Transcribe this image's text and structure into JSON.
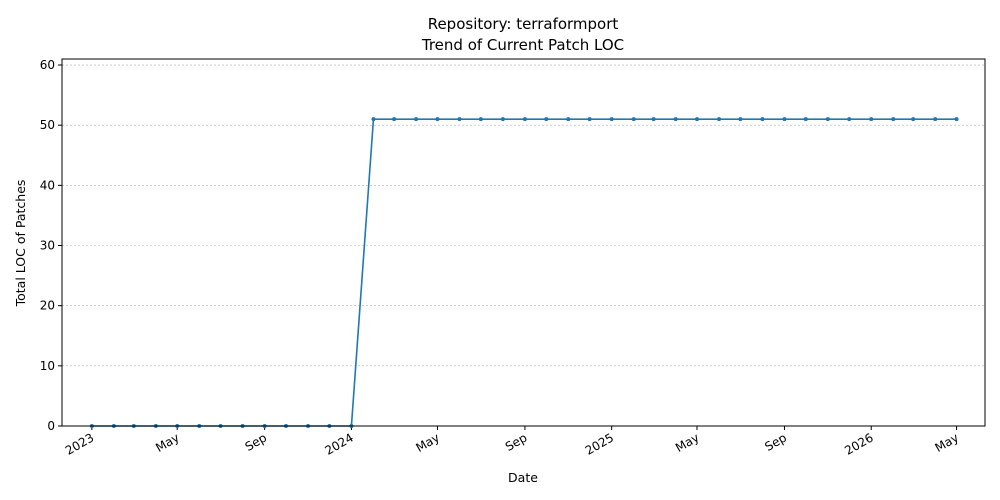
{
  "chart_data": {
    "type": "line",
    "title": "Repository: terraformport",
    "subtitle": "Trend of Current Patch LOC",
    "xlabel": "Date",
    "ylabel": "Total LOC of Patches",
    "ylim": [
      0,
      61
    ],
    "yticks": [
      0,
      10,
      20,
      30,
      40,
      50,
      60
    ],
    "xlim": [
      "2022-11-20",
      "2026-06-10"
    ],
    "xticks": [
      {
        "date": "2023-01-01",
        "label": "2023"
      },
      {
        "date": "2023-05-01",
        "label": "May"
      },
      {
        "date": "2023-09-01",
        "label": "Sep"
      },
      {
        "date": "2024-01-01",
        "label": "2024"
      },
      {
        "date": "2024-05-01",
        "label": "May"
      },
      {
        "date": "2024-09-01",
        "label": "Sep"
      },
      {
        "date": "2025-01-01",
        "label": "2025"
      },
      {
        "date": "2025-05-01",
        "label": "May"
      },
      {
        "date": "2025-09-01",
        "label": "Sep"
      },
      {
        "date": "2026-01-01",
        "label": "2026"
      },
      {
        "date": "2026-05-01",
        "label": "May"
      }
    ],
    "grid": "y",
    "color": "#1f77b4",
    "series": [
      {
        "x": [
          "2023-01-01",
          "2023-02-01",
          "2023-03-01",
          "2023-04-01",
          "2023-05-01",
          "2023-06-01",
          "2023-07-01",
          "2023-08-01",
          "2023-09-01",
          "2023-10-01",
          "2023-11-01",
          "2023-12-01",
          "2024-01-01",
          "2024-02-01",
          "2024-03-01",
          "2024-04-01",
          "2024-05-01",
          "2024-06-01",
          "2024-07-01",
          "2024-08-01",
          "2024-09-01",
          "2024-10-01",
          "2024-11-01",
          "2024-12-01",
          "2025-01-01",
          "2025-02-01",
          "2025-03-01",
          "2025-04-01",
          "2025-05-01",
          "2025-06-01",
          "2025-07-01",
          "2025-08-01",
          "2025-09-01",
          "2025-10-01",
          "2025-11-01",
          "2025-12-01",
          "2026-01-01",
          "2026-02-01",
          "2026-03-01",
          "2026-04-01",
          "2026-05-01"
        ],
        "values": [
          0,
          0,
          0,
          0,
          0,
          0,
          0,
          0,
          0,
          0,
          0,
          0,
          0,
          51,
          51,
          51,
          51,
          51,
          51,
          51,
          51,
          51,
          51,
          51,
          51,
          51,
          51,
          51,
          51,
          51,
          51,
          51,
          51,
          51,
          51,
          51,
          51,
          51,
          51,
          51,
          51
        ]
      }
    ]
  }
}
